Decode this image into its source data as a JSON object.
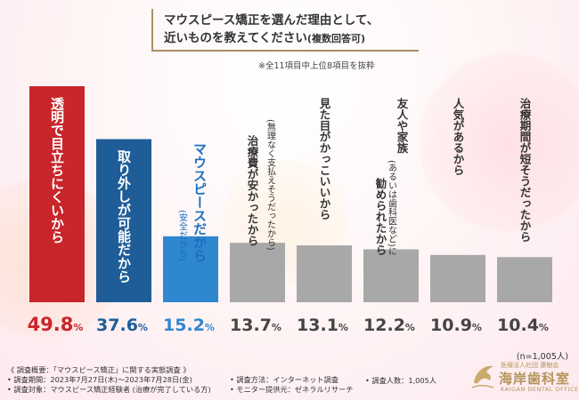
{
  "title": {
    "line1": "マウスピース矯正を選んだ理由として、",
    "line2": "近いものを教えてください",
    "line2_note": "(複数回答可)",
    "sub_note": "※全11項目中上位8項目を抜粋"
  },
  "chart_data": {
    "type": "bar",
    "title": "マウスピース矯正を選んだ理由として、近いものを教えてください(複数回答可)",
    "categories": [
      {
        "lines": [
          "透明で目立ちにくいから"
        ],
        "subline": null
      },
      {
        "lines": [
          "取り外しが可能だから"
        ],
        "subline": null
      },
      {
        "lines": [
          "マウスピースだから"
        ],
        "subline": "(安全だから)"
      },
      {
        "lines": [
          "治療費が安かったから"
        ],
        "subline": "(無理なく支払えそうだったから)"
      },
      {
        "lines": [
          "見た目がかっこいいから"
        ],
        "subline": null
      },
      {
        "lines": [
          "友人や家族",
          "勧められたから"
        ],
        "subline": null,
        "inline": "(あるいは歯科医など)に"
      },
      {
        "lines": [
          "人気があるから"
        ],
        "subline": null
      },
      {
        "lines": [
          "治療期間が短そうだったから"
        ],
        "subline": null
      }
    ],
    "values": [
      49.8,
      37.6,
      15.2,
      13.7,
      13.1,
      12.2,
      10.9,
      10.4
    ],
    "value_labels": [
      "49.8",
      "37.6",
      "15.2",
      "13.7",
      "13.1",
      "12.2",
      "10.9",
      "10.4"
    ],
    "unit": "%",
    "colors": [
      "#c8262b",
      "#1f5d99",
      "#2f87cf",
      "#a8a8a8",
      "#a8a8a8",
      "#a8a8a8",
      "#a8a8a8",
      "#a8a8a8"
    ],
    "label_colors": [
      "#c8262b",
      "#1f5d99",
      "#2f87cf",
      "#444444",
      "#444444",
      "#444444",
      "#444444",
      "#444444"
    ],
    "ylim": [
      0,
      50
    ],
    "grid": false,
    "legend": "none"
  },
  "sample_size": "(n=1,005人)",
  "footer": {
    "survey_overview": "《 調査概要：「マウスピース矯正」に関する実態調査 》",
    "survey_period": "• 調査期間：2023年7月27日(木)～2023年7月28日(金)",
    "survey_target": "• 調査対象：マウスピース矯正経験者 (治療が完了している方)",
    "survey_method": "• 調査方法：インターネット調査",
    "monitor": "• モニター提供元：ゼネラルリサーチ",
    "survey_count": "• 調査人数：1,005人"
  },
  "logo": {
    "sub": "医療法人社団 康樹会",
    "main": "海岸歯科室",
    "english": "KAIGAN DENTAL OFFICE"
  }
}
